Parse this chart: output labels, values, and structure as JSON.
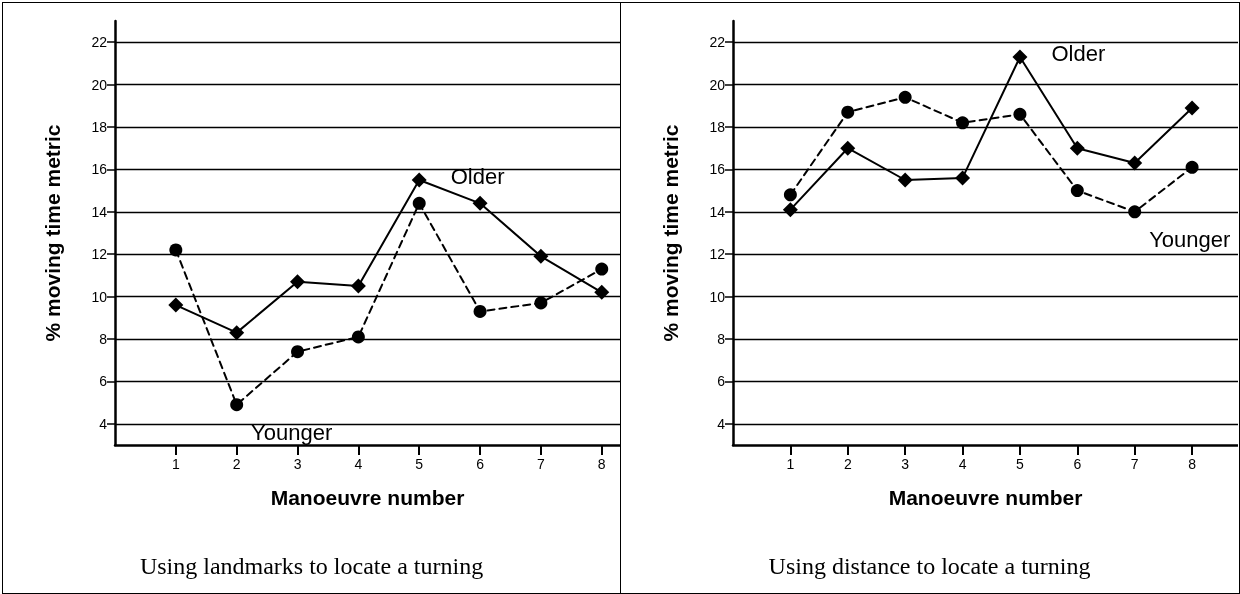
{
  "chart_data": [
    {
      "type": "line",
      "title": "Using landmarks to locate a turning",
      "xlabel": "Manoeuvre number",
      "ylabel": "% moving time metric",
      "x": [
        1,
        2,
        3,
        4,
        5,
        6,
        7,
        8
      ],
      "series": [
        {
          "name": "Older",
          "color": "#000000",
          "marker": "diamond",
          "line_style": "solid",
          "values": [
            9.6,
            8.3,
            10.7,
            10.5,
            15.5,
            14.4,
            11.9,
            10.2
          ]
        },
        {
          "name": "Younger",
          "color": "#000000",
          "marker": "circle",
          "line_style": "dashed",
          "values": [
            12.2,
            4.9,
            7.4,
            8.1,
            14.4,
            9.3,
            9.7,
            11.3
          ]
        }
      ],
      "xlim": [
        0,
        8.3
      ],
      "xticks": [
        1,
        2,
        3,
        4,
        5,
        6,
        7,
        8
      ],
      "ylim": [
        3,
        23
      ],
      "yticks": [
        4,
        6,
        8,
        10,
        12,
        14,
        16,
        18,
        20,
        22
      ],
      "grid": "y",
      "legend": false
    },
    {
      "type": "line",
      "title": "Using distance to locate a turning",
      "xlabel": "Manoeuvre number",
      "ylabel": "% moving time metric",
      "x": [
        1,
        2,
        3,
        4,
        5,
        6,
        7,
        8
      ],
      "series": [
        {
          "name": "Older",
          "color": "#000000",
          "marker": "diamond",
          "line_style": "solid",
          "values": [
            14.1,
            17.0,
            15.5,
            15.6,
            21.3,
            17.0,
            16.3,
            18.9
          ]
        },
        {
          "name": "Younger",
          "color": "#000000",
          "marker": "circle",
          "line_style": "dashed",
          "values": [
            14.8,
            18.7,
            19.4,
            18.2,
            18.6,
            15.0,
            14.0,
            16.1
          ]
        }
      ],
      "xlim": [
        0,
        8.8
      ],
      "xticks": [
        1,
        2,
        3,
        4,
        5,
        6,
        7,
        8
      ],
      "ylim": [
        3,
        23
      ],
      "yticks": [
        4,
        6,
        8,
        10,
        12,
        14,
        16,
        18,
        20,
        22
      ],
      "grid": "y",
      "legend": false
    }
  ]
}
